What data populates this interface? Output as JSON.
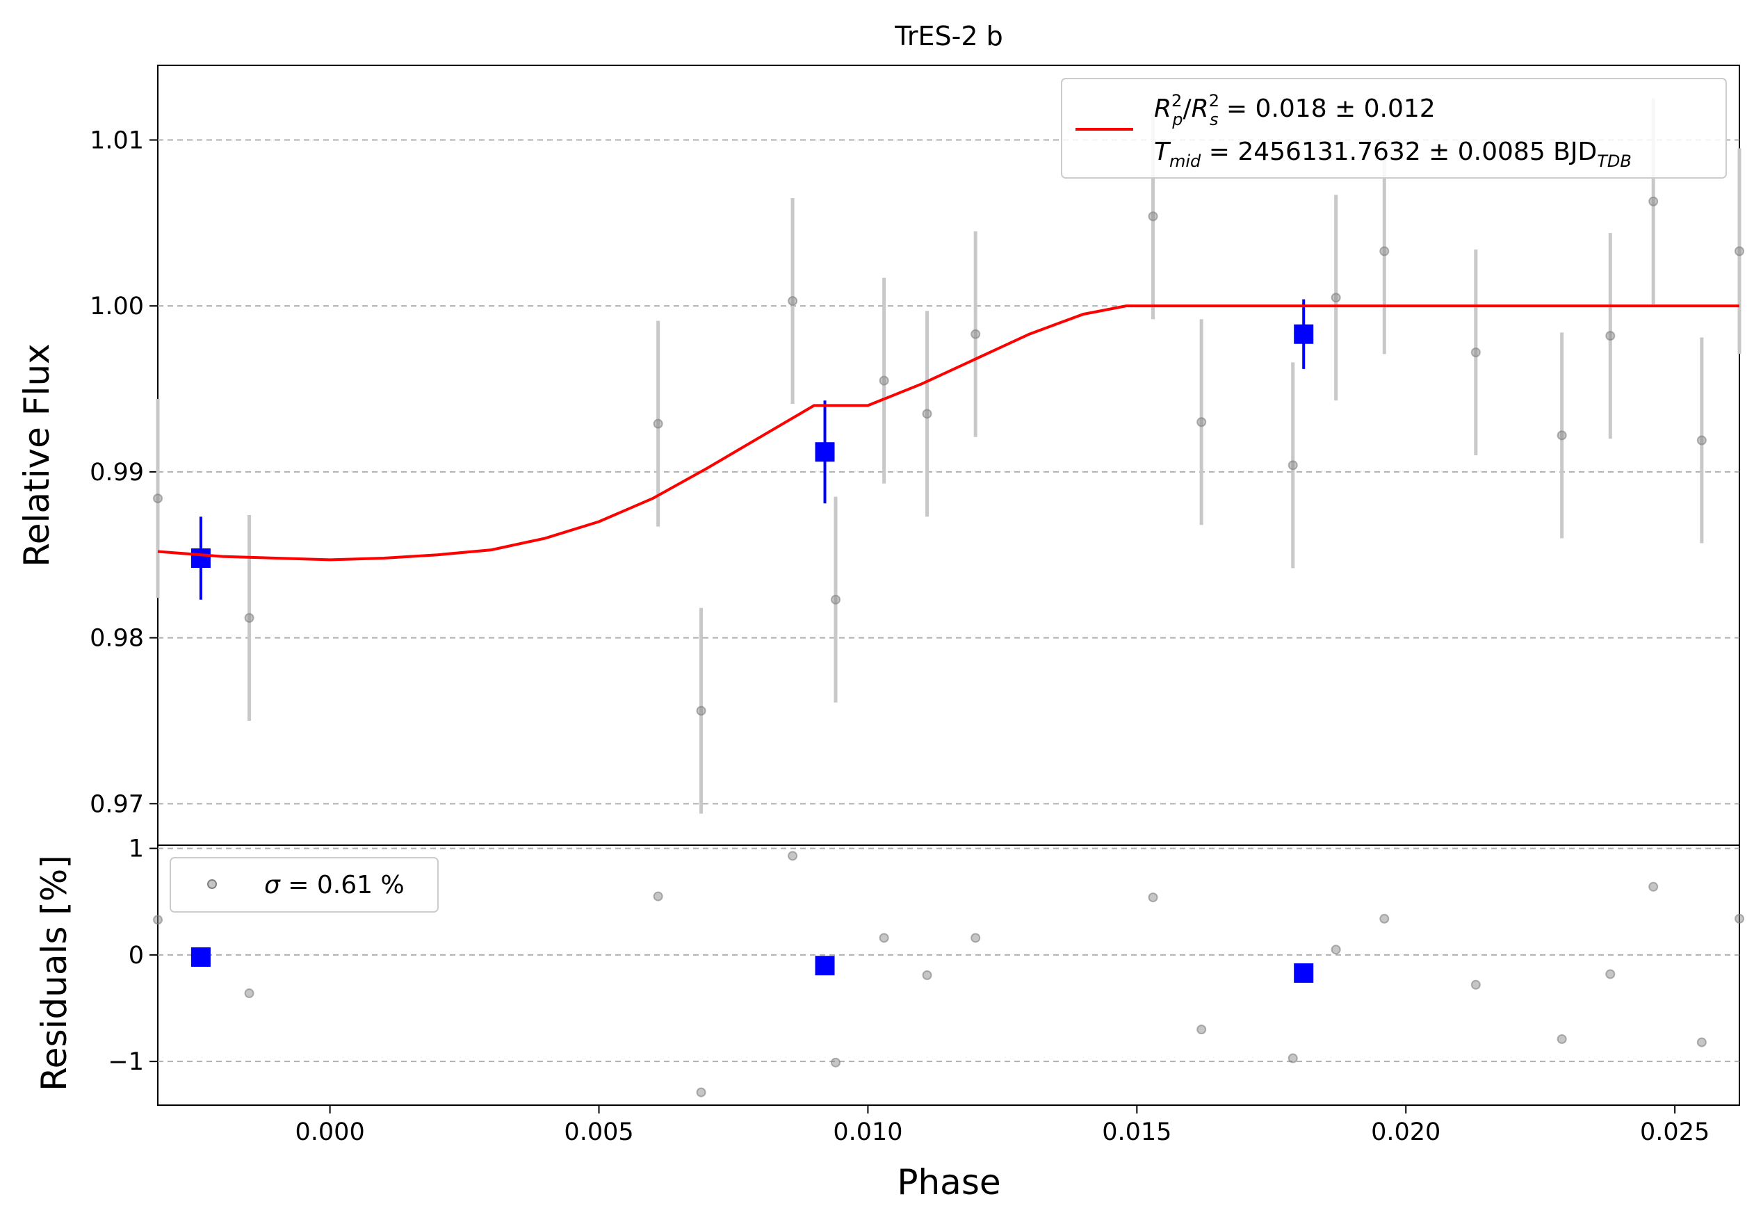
{
  "chart_data": [
    {
      "panel": "flux",
      "type": "scatter",
      "title": "TrES-2 b",
      "ylabel": "Relative Flux",
      "xlim": [
        -0.0032,
        0.0262
      ],
      "ylim": [
        0.9675,
        1.0145
      ],
      "yticks": [
        0.97,
        0.98,
        0.99,
        1.0,
        1.01
      ],
      "ytick_labels": [
        "0.97",
        "0.98",
        "0.99",
        "1.00",
        "1.01"
      ],
      "grid": "horizontal dashed",
      "legend_position": "top-right",
      "legend": {
        "rp": {
          "R": "R",
          "p": "p",
          "div": "/",
          "s": "s",
          "two": "2",
          "value": " = 0.018 ± 0.012"
        },
        "tmid": {
          "T": "T",
          "mid": "mid",
          "value": " = 2456131.7632 ± 0.0085 BJD",
          "tdb": "TDB"
        }
      },
      "series": [
        {
          "kind": "data",
          "color": "#808080",
          "x": [
            -0.0032,
            -0.0015,
            0.0061,
            0.0069,
            0.0086,
            0.0094,
            0.0103,
            0.0111,
            0.012,
            0.0153,
            0.0162,
            0.0179,
            0.0187,
            0.0196,
            0.0213,
            0.0229,
            0.0238,
            0.0246,
            0.0255,
            0.0262
          ],
          "y": [
            0.9884,
            0.9812,
            0.9929,
            0.9756,
            1.0003,
            0.9823,
            0.9955,
            0.9935,
            0.9983,
            1.0054,
            0.993,
            0.9904,
            1.0005,
            1.0033,
            0.9972,
            0.9922,
            0.9982,
            1.0063,
            0.9919,
            1.0033
          ],
          "err": [
            0.006,
            0.0062,
            0.0062,
            0.0062,
            0.0062,
            0.0062,
            0.0062,
            0.0062,
            0.0062,
            0.0062,
            0.0062,
            0.0062,
            0.0062,
            0.0062,
            0.0062,
            0.0062,
            0.0062,
            0.0062,
            0.0062,
            0.0062
          ]
        },
        {
          "kind": "binned",
          "color": "#0000ff",
          "x": [
            -0.0024,
            0.0092,
            0.0181
          ],
          "y": [
            0.9848,
            0.9912,
            0.9983
          ],
          "err": [
            0.0025,
            0.0031,
            0.0021
          ]
        },
        {
          "kind": "model",
          "color": "#ff0000",
          "x": [
            -0.0032,
            -0.002,
            -0.001,
            0.0,
            0.001,
            0.002,
            0.003,
            0.004,
            0.005,
            0.006,
            0.007,
            0.008,
            0.009,
            0.01,
            0.011,
            0.012,
            0.013,
            0.014,
            0.0148,
            0.015,
            0.02,
            0.0262
          ],
          "y": [
            0.9852,
            0.9849,
            0.9848,
            0.9847,
            0.9848,
            0.985,
            0.9853,
            0.986,
            0.987,
            0.9884,
            0.9902,
            0.9921,
            0.994,
            0.994,
            0.9953,
            0.9968,
            0.9983,
            0.9995,
            1.0,
            1.0,
            1.0,
            1.0
          ]
        }
      ]
    },
    {
      "panel": "residuals",
      "type": "scatter",
      "xlabel": "Phase",
      "ylabel": "Residuals [%]",
      "xlim": [
        -0.0032,
        0.0262
      ],
      "ylim": [
        -1.41,
        1.03
      ],
      "yticks": [
        -1,
        0,
        1
      ],
      "ytick_labels": [
        "−1",
        "0",
        "1"
      ],
      "xticks": [
        0.0,
        0.005,
        0.01,
        0.015,
        0.02,
        0.025
      ],
      "xtick_labels": [
        "0.000",
        "0.005",
        "0.010",
        "0.015",
        "0.020",
        "0.025"
      ],
      "grid": "horizontal dashed",
      "legend_position": "top-left",
      "legend": {
        "sigma": "σ",
        "value": " = 0.61 %"
      },
      "series": [
        {
          "kind": "data",
          "color": "#808080",
          "x": [
            -0.0032,
            -0.0015,
            0.0061,
            0.0069,
            0.0086,
            0.0094,
            0.0103,
            0.0111,
            0.012,
            0.0153,
            0.0162,
            0.0179,
            0.0187,
            0.0196,
            0.0213,
            0.0229,
            0.0238,
            0.0246,
            0.0255,
            0.0262
          ],
          "y": [
            0.33,
            -0.36,
            0.55,
            -1.29,
            0.93,
            -1.01,
            0.16,
            -0.19,
            0.16,
            0.54,
            -0.7,
            -0.97,
            0.05,
            0.34,
            -0.28,
            -0.79,
            -0.18,
            0.64,
            -0.82,
            0.34
          ]
        },
        {
          "kind": "binned",
          "color": "#0000ff",
          "x": [
            -0.0024,
            0.0092,
            0.0181
          ],
          "y": [
            -0.02,
            -0.1,
            -0.17
          ]
        }
      ]
    }
  ]
}
